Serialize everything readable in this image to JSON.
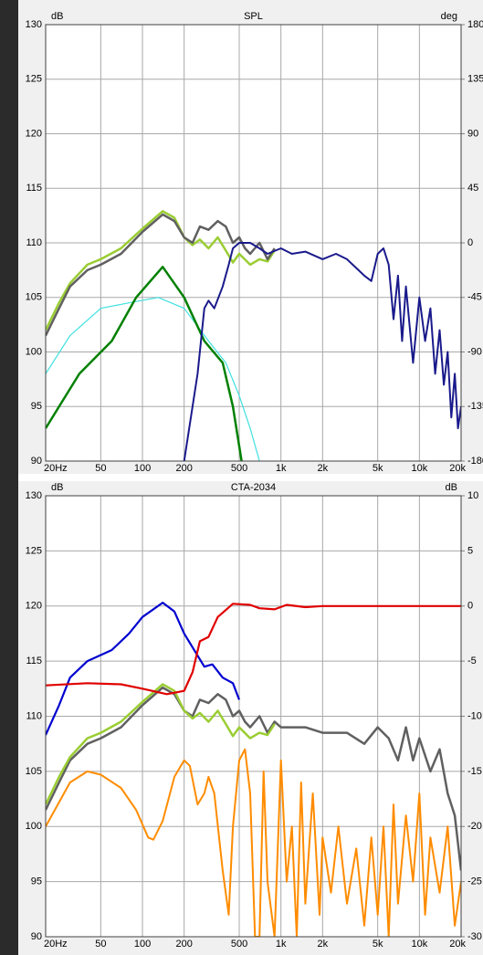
{
  "chart_data": [
    {
      "type": "line",
      "title": "SPL",
      "y_label": "dB",
      "y2_label": "deg",
      "xscale": "log",
      "grid": true,
      "xlim": [
        20,
        20000
      ],
      "ylim": [
        90,
        130
      ],
      "y2lim": [
        -180,
        180
      ],
      "xticks": [
        {
          "value": 20,
          "label": "20Hz"
        },
        50,
        100,
        200,
        500,
        {
          "value": 1000,
          "label": "1k"
        },
        {
          "value": 2000,
          "label": "2k"
        },
        {
          "value": 5000,
          "label": "5k"
        },
        {
          "value": 10000,
          "label": "10k"
        },
        {
          "value": 20000,
          "label": "20k"
        }
      ],
      "yticks": [
        90,
        95,
        100,
        105,
        110,
        115,
        120,
        125,
        130
      ],
      "y2ticks": [
        -180,
        -135,
        -90,
        -45,
        0,
        45,
        90,
        135,
        180
      ],
      "series": [
        {
          "color": "#40e0e0",
          "width": 1.2,
          "x": [
            20,
            30,
            50,
            80,
            130,
            200,
            300,
            400,
            500,
            600,
            700
          ],
          "values": [
            98,
            101.5,
            104,
            104.5,
            105,
            104,
            101,
            99,
            96,
            93,
            90
          ]
        },
        {
          "color": "#008000",
          "width": 2.5,
          "x": [
            20,
            35,
            60,
            90,
            140,
            200,
            280,
            380,
            450,
            520
          ],
          "values": [
            93,
            98,
            101,
            105,
            107.8,
            105,
            101,
            99,
            95,
            90
          ]
        },
        {
          "color": "#9acd32",
          "width": 2.5,
          "x": [
            20,
            25,
            30,
            40,
            50,
            70,
            100,
            140,
            170,
            200,
            230,
            260,
            300,
            350,
            400,
            450,
            500,
            600,
            700,
            800,
            900
          ],
          "values": [
            102,
            104.5,
            106.3,
            108,
            108.5,
            109.5,
            111.3,
            112.9,
            112.3,
            110.5,
            109.8,
            110.3,
            109.5,
            110.5,
            109.3,
            108.2,
            109,
            108,
            108.5,
            108.3,
            109.3
          ]
        },
        {
          "color": "#606060",
          "width": 2.5,
          "x": [
            20,
            25,
            30,
            40,
            50,
            70,
            100,
            140,
            170,
            200,
            230,
            260,
            300,
            350,
            400,
            450,
            500,
            550,
            600,
            700,
            800,
            900
          ],
          "values": [
            101.5,
            104,
            106,
            107.5,
            108,
            109,
            111,
            112.6,
            112,
            110.5,
            110,
            111.5,
            111.2,
            112,
            111.5,
            110,
            110.5,
            109.5,
            109,
            110,
            108.5,
            109.5
          ]
        },
        {
          "color": "#1a1a8c",
          "width": 2,
          "x": [
            200,
            250,
            280,
            300,
            330,
            380,
            420,
            450,
            500,
            600,
            700,
            800,
            1000,
            1200,
            1500,
            2000,
            2500,
            3000,
            4000,
            4500,
            5000,
            5500,
            6000,
            6500,
            7000,
            7500,
            8000,
            9000,
            10000,
            11000,
            12000,
            13000,
            14000,
            15000,
            16000,
            17000,
            18000,
            19000,
            20000
          ],
          "values": [
            90,
            98,
            104,
            104.7,
            104,
            106,
            108,
            109.5,
            110,
            110,
            109.5,
            109,
            109.5,
            109,
            109.2,
            108.5,
            109,
            108.5,
            107,
            106.5,
            109,
            109.5,
            108,
            103,
            107,
            101,
            106,
            99,
            105,
            101,
            104,
            98,
            102,
            97,
            100,
            94,
            98,
            93,
            95
          ]
        }
      ]
    },
    {
      "type": "line",
      "title": "CTA-2034",
      "y_label": "dB",
      "y2_label": "dB",
      "xscale": "log",
      "grid": true,
      "xlim": [
        20,
        20000
      ],
      "ylim": [
        90,
        130
      ],
      "y2lim": [
        -30,
        10
      ],
      "xticks": [
        {
          "value": 20,
          "label": "20Hz"
        },
        50,
        100,
        200,
        500,
        {
          "value": 1000,
          "label": "1k"
        },
        {
          "value": 2000,
          "label": "2k"
        },
        {
          "value": 5000,
          "label": "5k"
        },
        {
          "value": 10000,
          "label": "10k"
        },
        {
          "value": 20000,
          "label": "20k"
        }
      ],
      "yticks": [
        90,
        95,
        100,
        105,
        110,
        115,
        120,
        125,
        130
      ],
      "y2ticks": [
        -30,
        -25,
        -20,
        -15,
        -10,
        -5,
        0,
        5,
        10
      ],
      "series": [
        {
          "color": "#ff8c00",
          "width": 2,
          "x": [
            20,
            30,
            40,
            50,
            70,
            90,
            110,
            120,
            140,
            170,
            200,
            220,
            250,
            280,
            300,
            330,
            380,
            420,
            450,
            500,
            550,
            600,
            650,
            700,
            750,
            800,
            900,
            1000,
            1100,
            1200,
            1300,
            1400,
            1500,
            1700,
            1900,
            2000,
            2300,
            2600,
            3000,
            3500,
            4000,
            4500,
            5000,
            5500,
            6000,
            6500,
            7000,
            8000,
            9000,
            10000,
            11000,
            12000,
            14000,
            16000,
            18000,
            20000
          ],
          "values": [
            100,
            104,
            105,
            104.7,
            103.5,
            101.5,
            99,
            98.8,
            100.5,
            104.5,
            106,
            105.5,
            102,
            103,
            104.5,
            103,
            96,
            92,
            100,
            106,
            107,
            103,
            90,
            90,
            105,
            95,
            90,
            106,
            95,
            100,
            90,
            104,
            93,
            103,
            92,
            99,
            94,
            100,
            93,
            98,
            91,
            99,
            92,
            100,
            90,
            102,
            93,
            101,
            95,
            103,
            92,
            99,
            94,
            100,
            91,
            95
          ]
        },
        {
          "color": "#606060",
          "width": 2.5,
          "x": [
            20,
            25,
            30,
            40,
            50,
            70,
            100,
            140,
            170,
            200,
            230,
            260,
            300,
            350,
            400,
            450,
            500,
            550,
            600,
            700,
            800,
            900,
            1000,
            1500,
            2000,
            3000,
            4000,
            5000,
            6000,
            7000,
            8000,
            9000,
            10000,
            12000,
            14000,
            16000,
            18000,
            20000
          ],
          "values": [
            101.5,
            104,
            106,
            107.5,
            108,
            109,
            111,
            112.6,
            112,
            110.5,
            110,
            111.5,
            111.2,
            112,
            111.5,
            110,
            110.5,
            109.5,
            109,
            110,
            108.5,
            109.5,
            109,
            109,
            108.5,
            108.5,
            107.5,
            109,
            108,
            106,
            109,
            106,
            108,
            105,
            107,
            103,
            101,
            96
          ]
        },
        {
          "color": "#9acd32",
          "width": 2.5,
          "x": [
            20,
            25,
            30,
            40,
            50,
            70,
            100,
            140,
            170,
            200,
            230,
            260,
            300,
            350,
            400,
            450,
            500,
            600,
            700,
            800,
            900
          ],
          "values": [
            102,
            104.5,
            106.3,
            108,
            108.5,
            109.5,
            111.3,
            112.9,
            112.3,
            110.5,
            109.8,
            110.3,
            109.5,
            110.5,
            109.3,
            108.2,
            109,
            108,
            108.5,
            108.3,
            109.3
          ]
        },
        {
          "color": "#0000d0",
          "width": 2.2,
          "x": [
            20,
            25,
            30,
            40,
            60,
            80,
            100,
            140,
            170,
            200,
            250,
            280,
            320,
            380,
            450,
            500
          ],
          "values": [
            108.3,
            111,
            113.5,
            115,
            116,
            117.5,
            119,
            120.3,
            119.5,
            117.5,
            115.5,
            114.5,
            114.7,
            113.5,
            113,
            111.5
          ]
        },
        {
          "color": "#e00000",
          "width": 2.2,
          "x": [
            20,
            40,
            70,
            100,
            150,
            200,
            230,
            260,
            300,
            350,
            450,
            600,
            700,
            900,
            1100,
            1500,
            2000,
            5000,
            10000,
            20000
          ],
          "values": [
            112.8,
            113,
            112.9,
            112.5,
            112,
            112.3,
            114,
            116.8,
            117.2,
            119,
            120.2,
            120.1,
            119.8,
            119.7,
            120.1,
            119.9,
            120,
            120,
            120,
            120
          ]
        }
      ]
    }
  ]
}
